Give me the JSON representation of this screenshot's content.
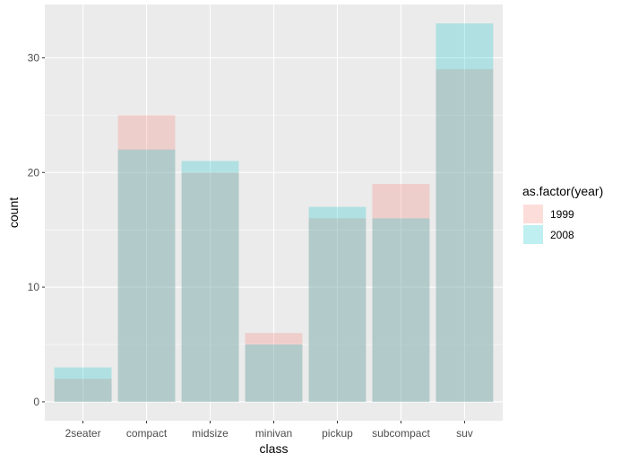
{
  "chart_data": {
    "type": "bar",
    "overlay": true,
    "xlabel": "class",
    "ylabel": "count",
    "categories": [
      "2seater",
      "compact",
      "midsize",
      "minivan",
      "pickup",
      "subcompact",
      "suv"
    ],
    "series": [
      {
        "name": "1999",
        "values": [
          2,
          25,
          20,
          6,
          16,
          19,
          29
        ],
        "color": "#F8766D"
      },
      {
        "name": "2008",
        "values": [
          3,
          22,
          21,
          5,
          17,
          16,
          33
        ],
        "color": "#00BFC4"
      }
    ],
    "fill_alpha": 0.25,
    "ylim": [
      -1.65,
      34.65
    ],
    "yticks": [
      0,
      10,
      20,
      30
    ],
    "grid": true,
    "legend": {
      "title": "as.factor(year)",
      "position": "right",
      "items": [
        "1999",
        "2008"
      ]
    },
    "panel_color": "#EBEBEB",
    "grid_color": "#FFFFFF"
  }
}
